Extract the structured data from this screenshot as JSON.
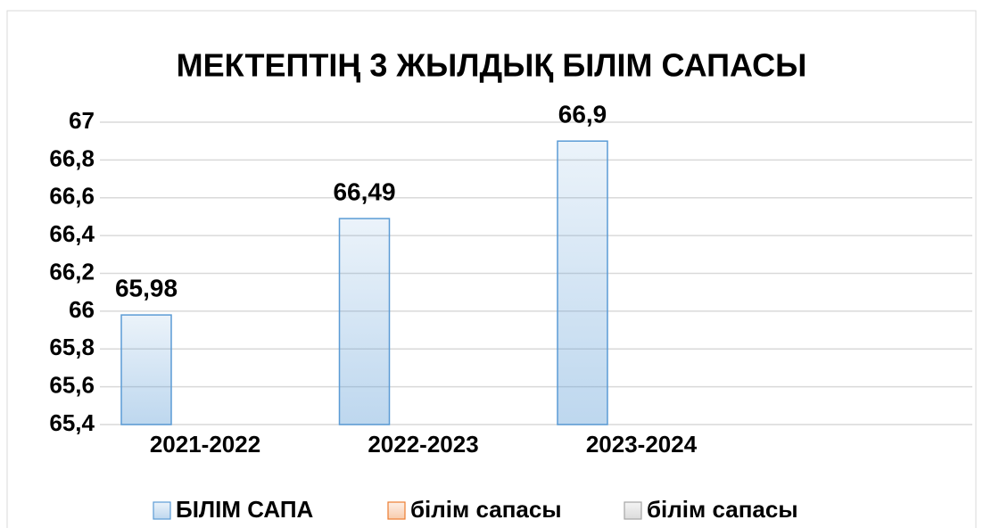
{
  "chart_data": {
    "type": "bar",
    "title": "МЕКТЕПТІҢ 3  ЖЫЛДЫҚ  БІЛІМ САПАСЫ",
    "categories": [
      "2021-2022",
      "2022-2023",
      "2023-2024",
      null
    ],
    "series": [
      {
        "name": "БІЛІМ САПА",
        "color": "#5b9bd5",
        "values": [
          65.98,
          66.49,
          66.9,
          null
        ],
        "value_labels": [
          "65,98",
          "66,49",
          "66,9",
          null
        ]
      },
      {
        "name": "білім сапасы",
        "color": "#ed7d31",
        "values": [
          null,
          null,
          null,
          null
        ]
      },
      {
        "name": "білім сапасы",
        "color": "#a5a5a5",
        "values": [
          null,
          null,
          null,
          null
        ]
      }
    ],
    "ylim": [
      65.4,
      67
    ],
    "yticks": [
      {
        "value": 65.4,
        "label": "65,4"
      },
      {
        "value": 65.6,
        "label": "65,6"
      },
      {
        "value": 65.8,
        "label": "65,8"
      },
      66,
      {
        "value": 66.2,
        "label": "66,2"
      },
      {
        "value": 66.4,
        "label": "66,4"
      },
      {
        "value": 66.6,
        "label": "66,6"
      },
      {
        "value": 66.8,
        "label": "66,8"
      },
      67
    ],
    "grid": true,
    "legend": "bottom"
  }
}
